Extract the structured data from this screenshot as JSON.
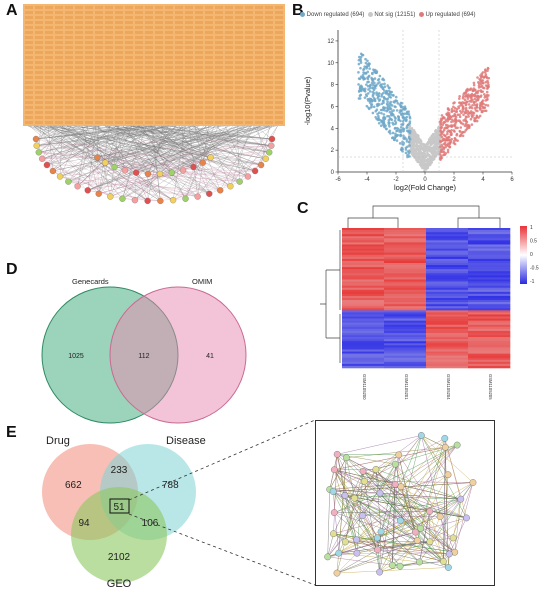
{
  "panels": {
    "a": {
      "letter": "A"
    },
    "b": {
      "letter": "B"
    },
    "c": {
      "letter": "C"
    },
    "d": {
      "letter": "D"
    },
    "e": {
      "letter": "E"
    }
  },
  "volcano": {
    "legend": [
      {
        "label": "Down regulated (694)",
        "color": "#6fa8c9"
      },
      {
        "label": "Not sig (12151)",
        "color": "#c8c8c8"
      },
      {
        "label": "Up regulated (694)",
        "color": "#e07a7a"
      }
    ],
    "ylabel": "-log10(Pvalue)",
    "xlabel": "log2(Fold Change)",
    "xticks": [
      "-6",
      "-4",
      "-2",
      "0",
      "2",
      "4",
      "6"
    ],
    "yticks": [
      "0",
      "2",
      "4",
      "6",
      "8",
      "10",
      "12"
    ]
  },
  "heatmap": {
    "samples": [
      "GSM1105200",
      "GSM1105201",
      "GSM1105204",
      "GSM1105205"
    ],
    "scale": [
      "1",
      "0.5",
      "0",
      "-0.5",
      "-1"
    ],
    "colors": {
      "high": "#e8343a",
      "low": "#2a2ae0",
      "mid": "#ffffff"
    }
  },
  "venn2": {
    "labels": {
      "left": "Genecards",
      "right": "OMIM"
    },
    "values": {
      "left": "1025",
      "overlap": "112",
      "right": "41"
    }
  },
  "venn3": {
    "labels": {
      "drug": "Drug",
      "disease": "Disease",
      "geo": "GEO"
    },
    "values": {
      "drug_only": "662",
      "drug_disease": "233",
      "disease_only": "788",
      "center": "51",
      "drug_geo": "94",
      "disease_geo": "106",
      "geo_only": "2102"
    }
  },
  "chart_data": [
    {
      "type": "scatter",
      "title": "",
      "xlabel": "log2(Fold Change)",
      "ylabel": "-log10(Pvalue)",
      "xlim": [
        -6,
        6
      ],
      "ylim": [
        0,
        13
      ],
      "series": [
        {
          "name": "Down regulated (694)",
          "values": "cluster x -4.5..-1, y 1..11"
        },
        {
          "name": "Not sig (12151)",
          "values": "cluster x -1..1, y 0..4"
        },
        {
          "name": "Up regulated (694)",
          "values": "cluster x 1..4.5, y 1..9"
        }
      ],
      "legend": "top"
    }
  ]
}
